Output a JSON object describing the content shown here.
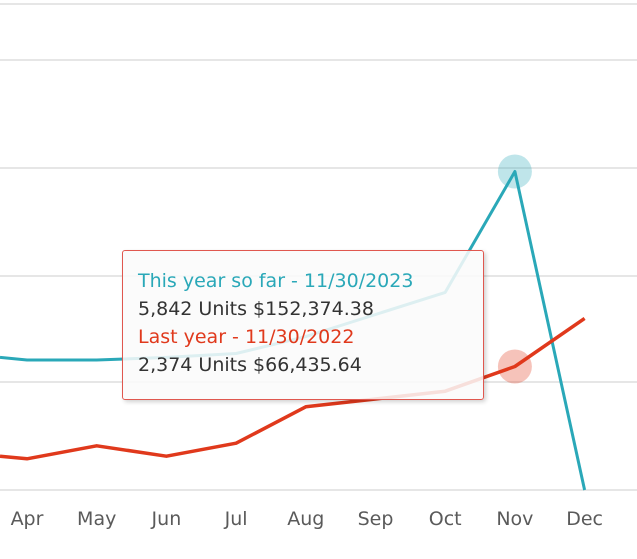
{
  "colors": {
    "this_year": "#2aa8b8",
    "last_year": "#e0391c",
    "grid": "#e6e6e6",
    "tick_text": "#5a5a5a",
    "tooltip_border": "#e0574f",
    "tooltip_text": "#333333"
  },
  "tooltip": {
    "this_year_title": "This year so far - 11/30/2023",
    "this_year_values": "5,842 Units $152,374.38",
    "last_year_title": "Last year - 11/30/2022",
    "last_year_values": "2,374 Units $66,435.64"
  },
  "chart_data": {
    "type": "line",
    "categories": [
      "Apr",
      "May",
      "Jun",
      "Jul",
      "Aug",
      "Sep",
      "Oct",
      "Nov",
      "Dec"
    ],
    "series": [
      {
        "values": [
          10,
          10,
          10.2,
          10.5,
          11.8,
          13.5,
          15.2,
          24.5,
          0
        ]
      },
      {
        "values": [
          2.4,
          3.4,
          2.6,
          3.6,
          6.4,
          7.0,
          7.6,
          9.5,
          13.2
        ]
      }
    ],
    "highlighted_category": "Nov",
    "ylim": [
      0,
      32
    ],
    "grid": true,
    "legend": "none"
  }
}
